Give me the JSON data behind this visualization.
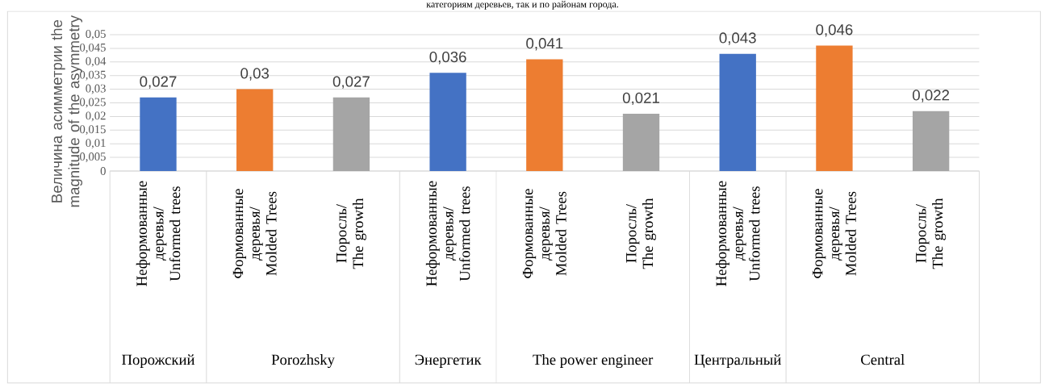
{
  "chart_data": {
    "type": "bar",
    "ylabel": "Величина асимметрии the magnitude of the asymmetry",
    "categories": [
      "Неформованные деревья/ Unformed trees",
      "Формованные деревья/ Molded Trees",
      "Поросль/ The growth",
      "Неформованные деревья/ Unformed trees",
      "Формованные деревья/ Molded Trees",
      "Поросль/ The growth",
      "Неформованные деревья/ Unformed trees",
      "Формованные деревья/ Molded Trees",
      "Поросль/ The growth"
    ],
    "values": [
      0.027,
      0.03,
      0.027,
      0.036,
      0.041,
      0.021,
      0.043,
      0.046,
      0.022
    ],
    "value_labels": [
      "0,027",
      "0,03",
      "0,027",
      "0,036",
      "0,041",
      "0,021",
      "0,043",
      "0,046",
      "0,022"
    ],
    "colors": [
      "#4472c4",
      "#ed7d31",
      "#a5a5a5",
      "#4472c4",
      "#ed7d31",
      "#a5a5a5",
      "#4472c4",
      "#ed7d31",
      "#a5a5a5"
    ],
    "ylim": [
      0,
      0.05
    ],
    "yticks": [
      {
        "value": 0,
        "label": "0"
      },
      {
        "value": 0.005,
        "label": "0,005"
      },
      {
        "value": 0.01,
        "label": "0,01"
      },
      {
        "value": 0.015,
        "label": "0,015"
      },
      {
        "value": 0.02,
        "label": "0,02"
      },
      {
        "value": 0.025,
        "label": "0,025"
      },
      {
        "value": 0.03,
        "label": "0,03"
      },
      {
        "value": 0.035,
        "label": "0,035"
      },
      {
        "value": 0.04,
        "label": "0,04"
      },
      {
        "value": 0.045,
        "label": "0,045"
      },
      {
        "value": 0.05,
        "label": "0,05"
      }
    ],
    "grid": "y",
    "annotations": [
      "категориям деревьев, так и по районам города.",
      "Порожский",
      "Porozhsky",
      "Энергетик",
      "The power engineer",
      "Центральный",
      "Central"
    ]
  }
}
